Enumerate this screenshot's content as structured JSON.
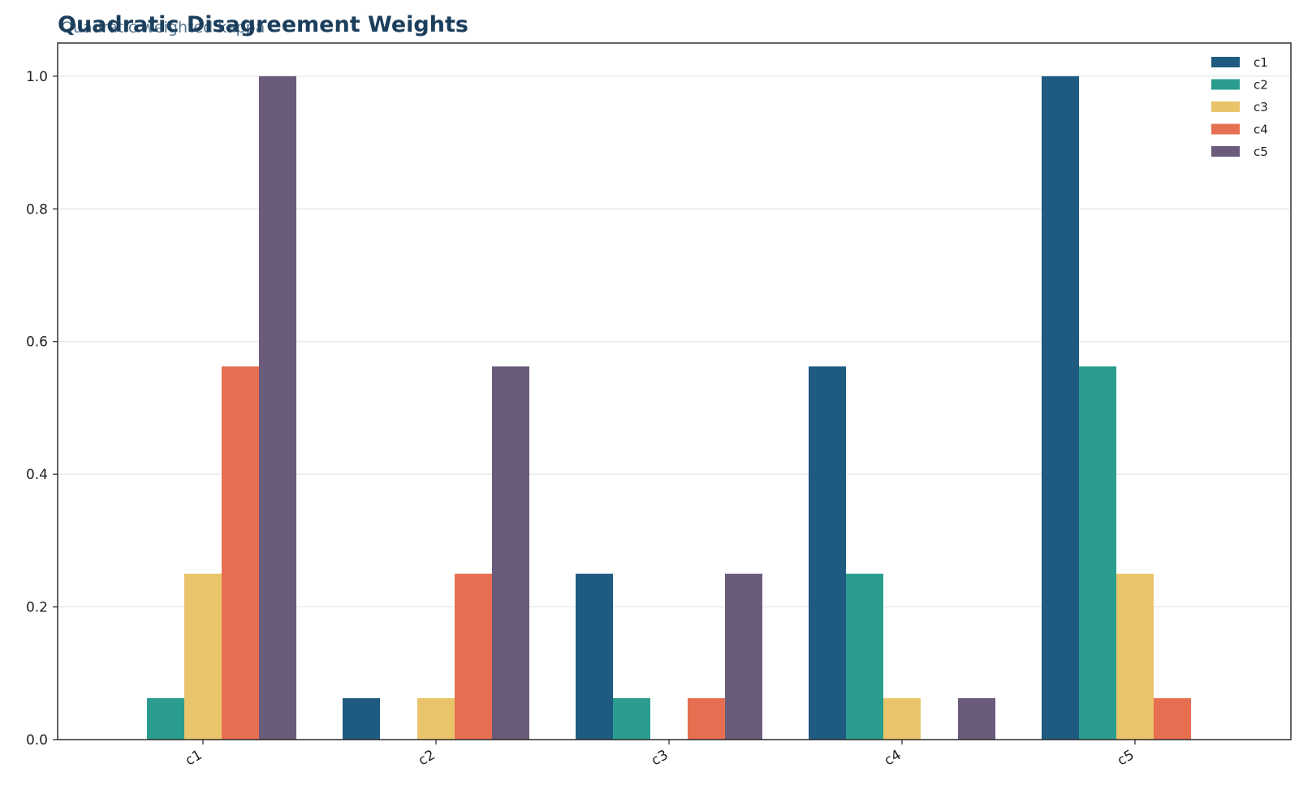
{
  "chart_data": {
    "type": "bar",
    "title": "Quadratic Disagreement Weights",
    "subtitle": "Quadratic weighted kappa",
    "xlabel": "",
    "ylabel": "",
    "categories": [
      "c1",
      "c2",
      "c3",
      "c4",
      "c5"
    ],
    "series": [
      {
        "name": "c1",
        "color": "#1f5a80",
        "values": [
          0.0,
          0.0625,
          0.25,
          0.5625,
          1.0
        ]
      },
      {
        "name": "c2",
        "color": "#2a9d8f",
        "values": [
          0.0625,
          0.0,
          0.0625,
          0.25,
          0.5625
        ]
      },
      {
        "name": "c3",
        "color": "#e9c46a",
        "values": [
          0.25,
          0.0625,
          0.0,
          0.0625,
          0.25
        ]
      },
      {
        "name": "c4",
        "color": "#e76f51",
        "values": [
          0.5625,
          0.25,
          0.0625,
          0.0,
          0.0625
        ]
      },
      {
        "name": "c5",
        "color": "#6b5b7b",
        "values": [
          1.0,
          0.5625,
          0.25,
          0.0625,
          0.0
        ]
      }
    ],
    "ylim": [
      0,
      1.05
    ],
    "yticks": [
      0.0,
      0.2,
      0.4,
      0.6,
      0.8,
      1.0
    ],
    "ytick_labels": [
      "0.0",
      "0.2",
      "0.4",
      "0.6",
      "0.8",
      "1.0"
    ],
    "grid": "horizontal",
    "legend_position": "top-right"
  }
}
